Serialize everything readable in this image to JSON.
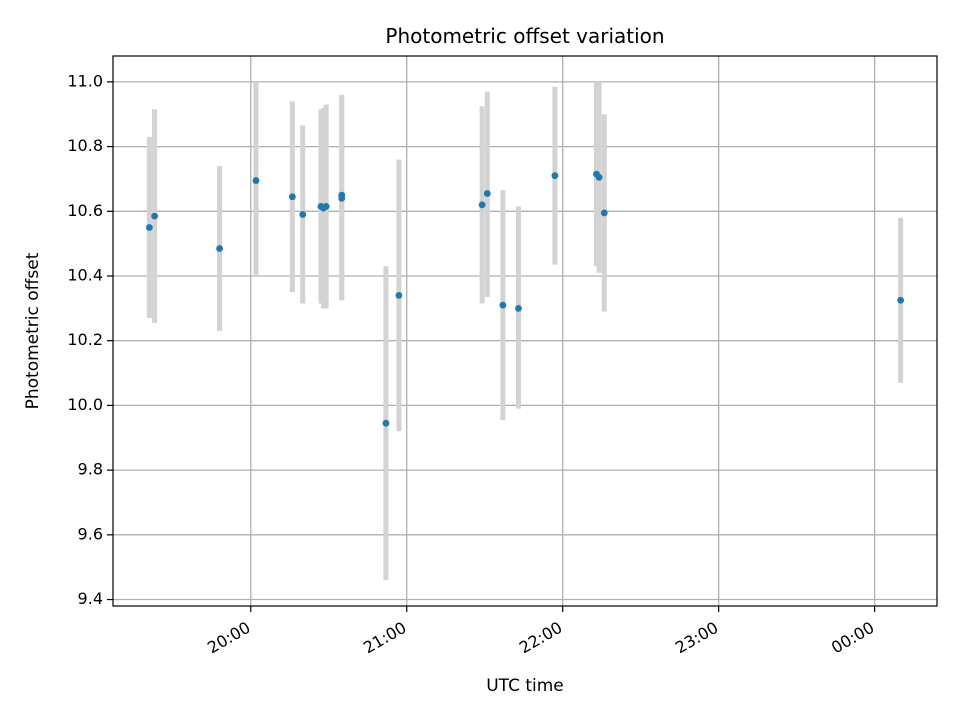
{
  "chart_data": {
    "type": "scatter",
    "title": "Photometric offset variation",
    "xlabel": "UTC time",
    "ylabel": "Photometric offset",
    "xlim": [
      "19:07",
      "24:24"
    ],
    "ylim": [
      9.38,
      11.08
    ],
    "grid": true,
    "x_ticks": [
      {
        "label": "20:00",
        "value": "20:00"
      },
      {
        "label": "21:00",
        "value": "21:00"
      },
      {
        "label": "22:00",
        "value": "22:00"
      },
      {
        "label": "23:00",
        "value": "23:00"
      },
      {
        "label": "00:00",
        "value": "24:00"
      }
    ],
    "y_ticks": [
      9.4,
      9.6,
      9.8,
      10.0,
      10.2,
      10.4,
      10.6,
      10.8,
      11.0
    ],
    "y_tick_labels": [
      "9.4",
      "9.6",
      "9.8",
      "10.0",
      "10.2",
      "10.4",
      "10.6",
      "10.8",
      "11.0"
    ],
    "marker_color": "#1f77b4",
    "errorbar_color": "#d3d3d3",
    "points": [
      {
        "x": "19:21",
        "y": 10.55,
        "ylow": 10.27,
        "yhigh": 10.83
      },
      {
        "x": "19:23",
        "y": 10.585,
        "ylow": 10.255,
        "yhigh": 10.915
      },
      {
        "x": "19:48",
        "y": 10.485,
        "ylow": 10.23,
        "yhigh": 10.74
      },
      {
        "x": "20:02",
        "y": 10.695,
        "ylow": 10.4,
        "yhigh": 11.0
      },
      {
        "x": "20:16",
        "y": 10.645,
        "ylow": 10.35,
        "yhigh": 10.94
      },
      {
        "x": "20:20",
        "y": 10.59,
        "ylow": 10.315,
        "yhigh": 10.865
      },
      {
        "x": "20:27",
        "y": 10.615,
        "ylow": 10.315,
        "yhigh": 10.915
      },
      {
        "x": "20:28",
        "y": 10.61,
        "ylow": 10.3,
        "yhigh": 10.92
      },
      {
        "x": "20:29",
        "y": 10.615,
        "ylow": 10.3,
        "yhigh": 10.93
      },
      {
        "x": "20:35",
        "y": 10.64,
        "ylow": 10.325,
        "yhigh": 10.955
      },
      {
        "x": "20:35",
        "y": 10.65,
        "ylow": 10.33,
        "yhigh": 10.96
      },
      {
        "x": "20:52",
        "y": 9.945,
        "ylow": 9.46,
        "yhigh": 10.43
      },
      {
        "x": "20:57",
        "y": 10.34,
        "ylow": 9.92,
        "yhigh": 10.76
      },
      {
        "x": "21:29",
        "y": 10.62,
        "ylow": 10.315,
        "yhigh": 10.925
      },
      {
        "x": "21:31",
        "y": 10.655,
        "ylow": 10.335,
        "yhigh": 10.97
      },
      {
        "x": "21:37",
        "y": 10.31,
        "ylow": 9.955,
        "yhigh": 10.665
      },
      {
        "x": "21:43",
        "y": 10.3,
        "ylow": 9.99,
        "yhigh": 10.615
      },
      {
        "x": "21:57",
        "y": 10.71,
        "ylow": 10.435,
        "yhigh": 10.985
      },
      {
        "x": "22:13",
        "y": 10.715,
        "ylow": 10.43,
        "yhigh": 11.0
      },
      {
        "x": "22:14",
        "y": 10.705,
        "ylow": 10.41,
        "yhigh": 11.0
      },
      {
        "x": "22:16",
        "y": 10.595,
        "ylow": 10.29,
        "yhigh": 10.9
      },
      {
        "x": "24:10",
        "y": 10.325,
        "ylow": 10.07,
        "yhigh": 10.58
      }
    ]
  }
}
